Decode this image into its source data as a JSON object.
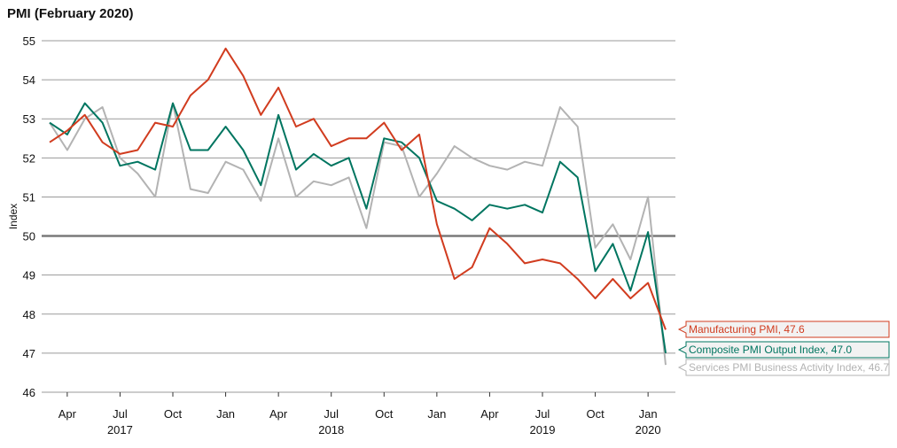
{
  "chart_data": {
    "type": "line",
    "title": "PMI (February 2020)",
    "ylabel": "Index",
    "xlabel": "",
    "ylim": [
      46,
      55
    ],
    "yticks": [
      46,
      47,
      48,
      49,
      50,
      51,
      52,
      53,
      54,
      55
    ],
    "reference_line": 50,
    "grid": true,
    "legend": "right end labels",
    "x": [
      "2017-03",
      "2017-04",
      "2017-05",
      "2017-06",
      "2017-07",
      "2017-08",
      "2017-09",
      "2017-10",
      "2017-11",
      "2017-12",
      "2018-01",
      "2018-02",
      "2018-03",
      "2018-04",
      "2018-05",
      "2018-06",
      "2018-07",
      "2018-08",
      "2018-09",
      "2018-10",
      "2018-11",
      "2018-12",
      "2019-01",
      "2019-02",
      "2019-03",
      "2019-04",
      "2019-05",
      "2019-06",
      "2019-07",
      "2019-08",
      "2019-09",
      "2019-10",
      "2019-11",
      "2019-12",
      "2020-01",
      "2020-02"
    ],
    "month_ticks": [
      {
        "x": "2017-04",
        "label": "Apr"
      },
      {
        "x": "2017-07",
        "label": "Jul"
      },
      {
        "x": "2017-10",
        "label": "Oct"
      },
      {
        "x": "2018-01",
        "label": "Jan"
      },
      {
        "x": "2018-04",
        "label": "Apr"
      },
      {
        "x": "2018-07",
        "label": "Jul"
      },
      {
        "x": "2018-10",
        "label": "Oct"
      },
      {
        "x": "2019-01",
        "label": "Jan"
      },
      {
        "x": "2019-04",
        "label": "Apr"
      },
      {
        "x": "2019-07",
        "label": "Jul"
      },
      {
        "x": "2019-10",
        "label": "Oct"
      },
      {
        "x": "2020-01",
        "label": "Jan"
      }
    ],
    "year_ticks": [
      {
        "x": "2017-07",
        "label": "2017"
      },
      {
        "x": "2018-07",
        "label": "2018"
      },
      {
        "x": "2019-07",
        "label": "2019"
      },
      {
        "x": "2020-01",
        "label": "2020"
      }
    ],
    "series": [
      {
        "name": "Manufacturing PMI",
        "end_label": "Manufacturing PMI, 47.6",
        "color": "#d13c1f",
        "values": [
          52.4,
          52.7,
          53.1,
          52.4,
          52.1,
          52.2,
          52.9,
          52.8,
          53.6,
          54.0,
          54.8,
          54.1,
          53.1,
          53.8,
          52.8,
          53.0,
          52.3,
          52.5,
          52.5,
          52.9,
          52.2,
          52.6,
          50.3,
          48.9,
          49.2,
          50.2,
          49.8,
          49.3,
          49.4,
          49.3,
          48.9,
          48.4,
          48.9,
          48.4,
          48.8,
          47.6
        ]
      },
      {
        "name": "Composite PMI Output Index",
        "end_label": "Composite PMI Output Index, 47.0",
        "color": "#007560",
        "values": [
          52.9,
          52.6,
          53.4,
          52.9,
          51.8,
          51.9,
          51.7,
          53.4,
          52.2,
          52.2,
          52.8,
          52.2,
          51.3,
          53.1,
          51.7,
          52.1,
          51.8,
          52.0,
          50.7,
          52.5,
          52.4,
          52.0,
          50.9,
          50.7,
          50.4,
          50.8,
          50.7,
          50.8,
          50.6,
          51.9,
          51.5,
          49.1,
          49.8,
          48.6,
          50.1,
          47.0
        ]
      },
      {
        "name": "Services PMI Business Activity Index",
        "end_label": "Services PMI Business Activity Index, 46.7",
        "color": "#b3b3b3",
        "values": [
          52.9,
          52.2,
          53.0,
          53.3,
          52.0,
          51.6,
          51.0,
          53.4,
          51.2,
          51.1,
          51.9,
          51.7,
          50.9,
          52.5,
          51.0,
          51.4,
          51.3,
          51.5,
          50.2,
          52.4,
          52.3,
          51.0,
          51.6,
          52.3,
          52.0,
          51.8,
          51.7,
          51.9,
          51.8,
          53.3,
          52.8,
          49.7,
          50.3,
          49.4,
          51.0,
          46.7
        ]
      }
    ]
  }
}
